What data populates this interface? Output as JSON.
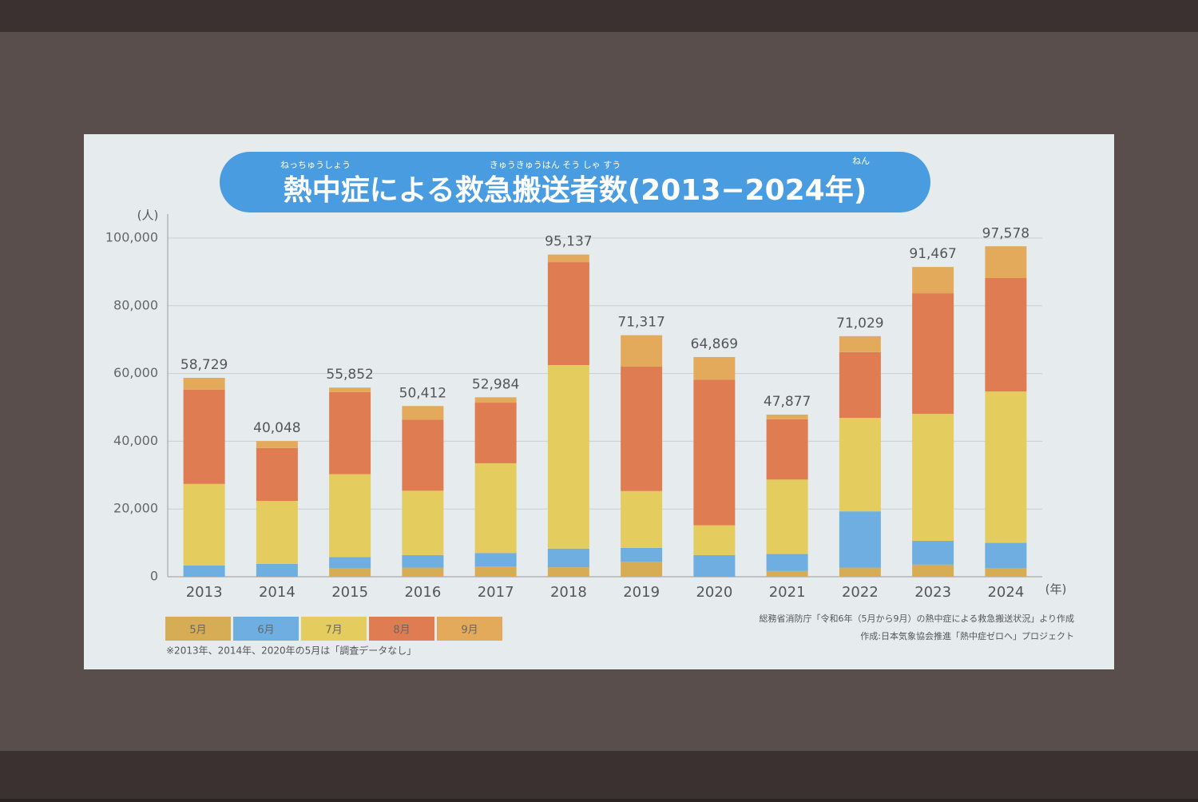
{
  "chart_data": {
    "type": "stacked-bar",
    "title": "熱中症による救急搬送者数(2013−2024年)",
    "title_ruby": [
      "ねっちゅうしょう",
      "きゅうきゅうはん そう しゃ すう",
      "ねん"
    ],
    "y_unit": "(人)",
    "x_unit": "(年)",
    "categories": [
      "2013",
      "2014",
      "2015",
      "2016",
      "2017",
      "2018",
      "2019",
      "2020",
      "2021",
      "2022",
      "2023",
      "2024"
    ],
    "series": [
      {
        "name": "5月",
        "color": "#d6ad55",
        "values": [
          null,
          null,
          2500,
          2700,
          3000,
          2800,
          4400,
          null,
          1700,
          2700,
          3600,
          2500
        ]
      },
      {
        "name": "6月",
        "color": "#6eaee0",
        "values": [
          3300,
          3800,
          3300,
          3700,
          4000,
          5500,
          4100,
          6400,
          5000,
          16600,
          7000,
          7500
        ]
      },
      {
        "name": "7月",
        "color": "#e4cc5e",
        "values": [
          24100,
          18600,
          24500,
          19000,
          26500,
          54200,
          16800,
          8800,
          22000,
          27600,
          37500,
          44700
        ]
      },
      {
        "name": "8月",
        "color": "#e07c52",
        "values": [
          27800,
          15600,
          24200,
          21000,
          17900,
          30400,
          36800,
          43000,
          17800,
          19400,
          35600,
          33500
        ]
      },
      {
        "name": "9月",
        "color": "#e3aa5c",
        "values": [
          3529,
          2048,
          1352,
          4012,
          1584,
          2237,
          9217,
          6669,
          1377,
          4729,
          7767,
          9378
        ]
      }
    ],
    "totals": [
      58729,
      40048,
      55852,
      50412,
      52984,
      95137,
      71317,
      64869,
      47877,
      71029,
      91467,
      97578
    ],
    "total_labels": [
      "58,729",
      "40,048",
      "55,852",
      "50,412",
      "52,984",
      "95,137",
      "71,317",
      "64,869",
      "47,877",
      "71,029",
      "91,467",
      "97,578"
    ],
    "ylim": [
      0,
      100000
    ],
    "yticks": [
      0,
      {
        "value": 20000,
        "label": "20,000"
      },
      {
        "value": 40000,
        "label": "40,000"
      },
      {
        "value": 60000,
        "label": "60,000"
      },
      {
        "value": 80000,
        "label": "80,000"
      },
      {
        "value": 100000,
        "label": "100,000"
      }
    ],
    "grid": true,
    "note": "※2013年、2014年、2020年の5月は「調査データなし」",
    "source": "総務省消防庁「令和6年（5月から9月）の熱中症による救急搬送状況」より作成",
    "credit": "作成:日本気象協会推進「熱中症ゼロへ」プロジェクト"
  }
}
